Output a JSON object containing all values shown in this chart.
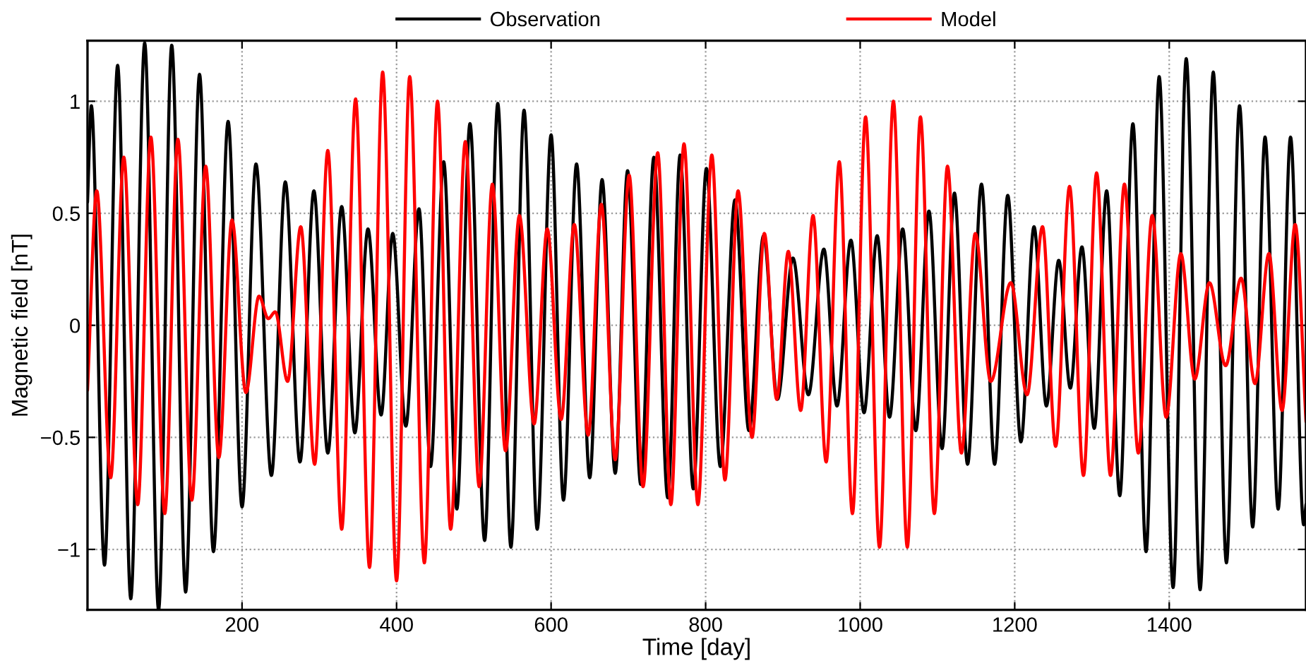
{
  "chart_data": {
    "type": "line",
    "xlabel": "Time [day]",
    "ylabel": "Magnetic field [nT]",
    "xlim": [
      0,
      1577
    ],
    "ylim": [
      -1.27,
      1.27
    ],
    "xticks": [
      200,
      400,
      600,
      800,
      1000,
      1200,
      1400
    ],
    "yticks": [
      {
        "value": -1,
        "label": "−1"
      },
      {
        "value": -0.5,
        "label": "−0.5"
      },
      0,
      0.5,
      1
    ],
    "grid": true,
    "legend": "top",
    "line_style": "solid",
    "marker": "none",
    "series": [
      {
        "name": "Observation",
        "color": "#000000",
        "x": [
          0,
          5,
          22,
          39,
          56,
          74,
          92,
          109,
          127,
          145,
          163,
          182,
          200,
          218,
          238,
          256,
          275,
          293,
          311,
          329,
          346,
          363,
          380,
          395,
          412,
          429,
          444,
          461,
          478,
          495,
          514,
          531,
          548,
          565,
          582,
          600,
          616,
          633,
          650,
          666,
          683,
          699,
          716,
          733,
          751,
          767,
          784,
          801,
          819,
          838,
          856,
          875,
          893,
          913,
          933,
          953,
          970,
          988,
          1005,
          1022,
          1038,
          1055,
          1072,
          1089,
          1106,
          1122,
          1139,
          1157,
          1174,
          1191,
          1208,
          1225,
          1241,
          1257,
          1272,
          1287,
          1303,
          1319,
          1336,
          1353,
          1370,
          1387,
          1405,
          1422,
          1440,
          1457,
          1474,
          1491,
          1508,
          1524,
          1541,
          1557,
          1574,
          1577
        ],
        "values": [
          0.55,
          0.98,
          -1.07,
          1.16,
          -1.22,
          1.26,
          -1.27,
          1.25,
          -1.19,
          1.12,
          -1.01,
          0.91,
          -0.81,
          0.72,
          -0.67,
          0.64,
          -0.61,
          0.6,
          -0.57,
          0.53,
          -0.48,
          0.43,
          -0.4,
          0.41,
          -0.45,
          0.52,
          -0.63,
          0.73,
          -0.82,
          0.9,
          -0.96,
          0.99,
          -0.99,
          0.96,
          -0.91,
          0.85,
          -0.78,
          0.72,
          -0.68,
          0.65,
          -0.66,
          0.69,
          -0.71,
          0.75,
          -0.77,
          0.76,
          -0.73,
          0.7,
          -0.63,
          0.56,
          -0.47,
          0.4,
          -0.33,
          0.3,
          -0.31,
          0.34,
          -0.36,
          0.38,
          -0.39,
          0.4,
          -0.41,
          0.43,
          -0.47,
          0.51,
          -0.55,
          0.59,
          -0.62,
          0.63,
          -0.62,
          0.58,
          -0.52,
          0.44,
          -0.36,
          0.29,
          -0.28,
          0.35,
          -0.46,
          0.6,
          -0.76,
          0.9,
          -1.01,
          1.11,
          -1.17,
          1.19,
          -1.18,
          1.13,
          -1.06,
          0.98,
          -0.9,
          0.84,
          -0.82,
          0.84,
          -0.89,
          -0.8
        ]
      },
      {
        "name": "Model",
        "color": "#ff0000",
        "x": [
          0,
          12,
          30,
          47,
          65,
          82,
          100,
          117,
          135,
          153,
          170,
          187,
          205,
          222,
          234,
          243,
          259,
          276,
          294,
          311,
          329,
          347,
          365,
          382,
          400,
          417,
          436,
          453,
          470,
          489,
          507,
          524,
          541,
          559,
          578,
          595,
          613,
          630,
          648,
          665,
          683,
          701,
          719,
          738,
          755,
          772,
          790,
          808,
          825,
          842,
          860,
          876,
          892,
          907,
          923,
          939,
          956,
          973,
          990,
          1007,
          1025,
          1043,
          1061,
          1078,
          1096,
          1113,
          1131,
          1149,
          1169,
          1195,
          1216,
          1236,
          1253,
          1271,
          1289,
          1306,
          1324,
          1342,
          1360,
          1378,
          1396,
          1415,
          1433,
          1452,
          1473,
          1493,
          1511,
          1529,
          1546,
          1563,
          1577
        ],
        "values": [
          -0.29,
          0.6,
          -0.68,
          0.75,
          -0.8,
          0.84,
          -0.84,
          0.83,
          -0.78,
          0.71,
          -0.59,
          0.47,
          -0.3,
          0.13,
          0.03,
          0.06,
          -0.25,
          0.44,
          -0.62,
          0.78,
          -0.91,
          1.01,
          -1.08,
          1.13,
          -1.14,
          1.11,
          -1.06,
          1.0,
          -0.91,
          0.82,
          -0.72,
          0.63,
          -0.56,
          0.49,
          -0.44,
          0.43,
          -0.42,
          0.45,
          -0.49,
          0.54,
          -0.6,
          0.67,
          -0.72,
          0.77,
          -0.8,
          0.81,
          -0.8,
          0.76,
          -0.69,
          0.6,
          -0.5,
          0.41,
          -0.33,
          0.33,
          -0.38,
          0.49,
          -0.61,
          0.73,
          -0.84,
          0.93,
          -0.99,
          1.0,
          -0.99,
          0.93,
          -0.84,
          0.71,
          -0.57,
          0.41,
          -0.25,
          0.19,
          -0.31,
          0.44,
          -0.54,
          0.62,
          -0.67,
          0.68,
          -0.67,
          0.63,
          -0.57,
          0.49,
          -0.41,
          0.32,
          -0.24,
          0.19,
          -0.18,
          0.21,
          -0.26,
          0.32,
          -0.38,
          0.45,
          -0.43
        ]
      }
    ]
  }
}
